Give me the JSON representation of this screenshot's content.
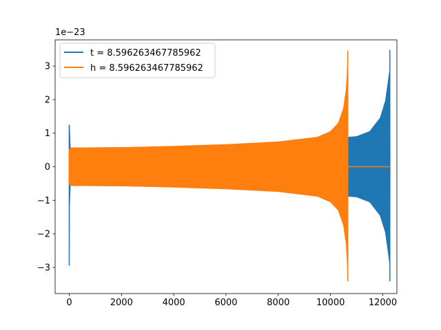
{
  "chart_data": {
    "type": "line",
    "title": "",
    "xlabel": "",
    "ylabel": "",
    "y_offset_text": "1e−23",
    "xlim": [
      -540,
      12540
    ],
    "ylim": [
      -3.78,
      3.78
    ],
    "x_ticks": [
      0,
      2000,
      4000,
      6000,
      8000,
      10000,
      12000
    ],
    "x_tick_labels": [
      "0",
      "2000",
      "4000",
      "6000",
      "8000",
      "10000",
      "12000"
    ],
    "y_ticks": [
      -3,
      -2,
      -1,
      0,
      1,
      2,
      3
    ],
    "y_tick_labels": [
      "−3",
      "−2",
      "−1",
      "0",
      "1",
      "2",
      "3"
    ],
    "grid": false,
    "legend": {
      "position": "top-left"
    },
    "series": [
      {
        "name": "t = 8.596263467785962",
        "color": "#1f77b4",
        "style": "dense oscillation envelope",
        "upper_envelope": [
          [
            0,
            1.25
          ],
          [
            10,
            1.2
          ],
          [
            40,
            0.56
          ],
          [
            2000,
            0.57
          ],
          [
            4000,
            0.6
          ],
          [
            6000,
            0.65
          ],
          [
            8000,
            0.72
          ],
          [
            9500,
            0.8
          ],
          [
            10700,
            0.88
          ],
          [
            11000,
            0.9
          ],
          [
            11500,
            1.05
          ],
          [
            11900,
            1.45
          ],
          [
            12100,
            1.95
          ],
          [
            12200,
            2.5
          ],
          [
            12260,
            2.85
          ],
          [
            12270,
            3.48
          ],
          [
            12280,
            0
          ]
        ],
        "lower_envelope": [
          [
            0,
            -2.95
          ],
          [
            10,
            -1.2
          ],
          [
            40,
            -0.56
          ],
          [
            2000,
            -0.57
          ],
          [
            4000,
            -0.6
          ],
          [
            6000,
            -0.65
          ],
          [
            8000,
            -0.72
          ],
          [
            9500,
            -0.8
          ],
          [
            10700,
            -0.88
          ],
          [
            11000,
            -0.9
          ],
          [
            11500,
            -1.05
          ],
          [
            11900,
            -1.45
          ],
          [
            12100,
            -1.95
          ],
          [
            12200,
            -2.5
          ],
          [
            12260,
            -2.85
          ],
          [
            12270,
            -3.42
          ],
          [
            12280,
            0
          ]
        ],
        "x_end": 12280
      },
      {
        "name": "h = 8.596263467785962",
        "color": "#ff7f0e",
        "style": "dense oscillation envelope",
        "upper_envelope": [
          [
            0,
            0.5
          ],
          [
            40,
            0.56
          ],
          [
            2000,
            0.57
          ],
          [
            4000,
            0.61
          ],
          [
            6000,
            0.66
          ],
          [
            8000,
            0.74
          ],
          [
            9500,
            0.88
          ],
          [
            10000,
            1.05
          ],
          [
            10300,
            1.3
          ],
          [
            10500,
            1.75
          ],
          [
            10600,
            2.3
          ],
          [
            10650,
            3.0
          ],
          [
            10660,
            3.45
          ],
          [
            10670,
            0
          ]
        ],
        "lower_envelope": [
          [
            0,
            -0.5
          ],
          [
            40,
            -0.56
          ],
          [
            2000,
            -0.57
          ],
          [
            4000,
            -0.61
          ],
          [
            6000,
            -0.66
          ],
          [
            8000,
            -0.74
          ],
          [
            9500,
            -0.88
          ],
          [
            10000,
            -1.05
          ],
          [
            10300,
            -1.3
          ],
          [
            10500,
            -1.75
          ],
          [
            10600,
            -2.3
          ],
          [
            10650,
            -3.0
          ],
          [
            10660,
            -3.42
          ],
          [
            10670,
            0
          ]
        ],
        "flat_tail": [
          [
            10670,
            0
          ],
          [
            12280,
            0
          ]
        ]
      }
    ]
  }
}
